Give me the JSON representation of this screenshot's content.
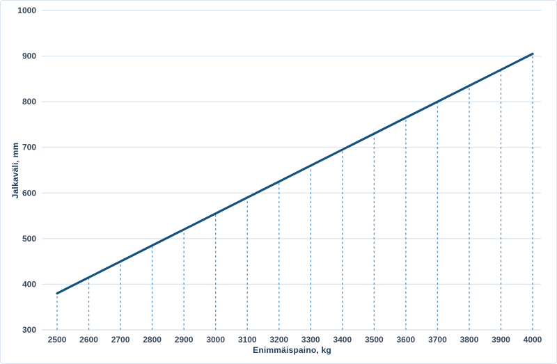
{
  "chart_data": {
    "type": "line",
    "categories": [
      2500,
      2600,
      2700,
      2800,
      2900,
      3000,
      3100,
      3200,
      3300,
      3400,
      3500,
      3600,
      3700,
      3800,
      3900,
      4000
    ],
    "values": [
      380,
      415,
      450,
      485,
      520,
      555,
      590,
      625,
      660,
      695,
      730,
      765,
      800,
      835,
      870,
      905
    ],
    "title": "",
    "xlabel": "Enimmäispaino, kg",
    "ylabel": "Jalkaväli, mm",
    "ylim": [
      300,
      1000
    ],
    "y_tick_step": 100,
    "x_tick_labels": [
      "2500",
      "2600",
      "2700",
      "2800",
      "2900",
      "3000",
      "3100",
      "3200",
      "3300",
      "3400",
      "3500",
      "3600",
      "3700",
      "3800",
      "3900",
      "4000"
    ],
    "y_tick_labels": [
      "300",
      "400",
      "500",
      "600",
      "700",
      "800",
      "900",
      "1000"
    ],
    "grid": "horizontal",
    "legend": "none",
    "drop_lines": "dashed-vertical-from-baseline-to-line",
    "colors": {
      "line": "#14527c",
      "drop_line": "#5b9bd5",
      "gridline": "#dce6f1",
      "tick_text": "#3a4a5c",
      "axis_title_text": "#24405e",
      "card_border": "#d9e4f0",
      "background": "#ffffff"
    }
  }
}
